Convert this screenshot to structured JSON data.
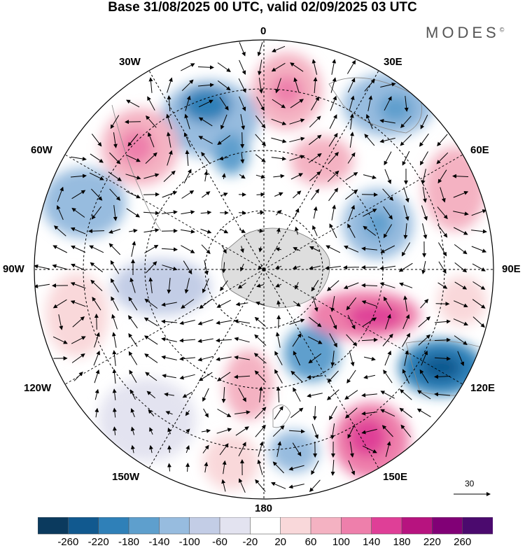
{
  "title": "Base 31/08/2025 00 UTC, valid 02/09/2025 03 UTC",
  "brand": {
    "name": "MODES",
    "mark": "©"
  },
  "longitude_labels": {
    "lon_0": "0",
    "lon_30e": "30E",
    "lon_60e": "60E",
    "lon_90e": "90E",
    "lon_120e": "120E",
    "lon_150e": "150E",
    "lon_180": "180",
    "lon_150w": "150W",
    "lon_120w": "120W",
    "lon_90w": "90W",
    "lon_60w": "60W",
    "lon_30w": "30W"
  },
  "wind_scale": {
    "label": "30"
  },
  "colorbar": {
    "ticks": [
      "-260",
      "-220",
      "-180",
      "-140",
      "-100",
      "-60",
      "-20",
      "20",
      "60",
      "100",
      "140",
      "180",
      "220",
      "260"
    ],
    "colors": [
      "#0b3a5e",
      "#11598f",
      "#2f80b8",
      "#5e9fcd",
      "#97bcdf",
      "#c3cde6",
      "#e3e3f0",
      "#ffffff",
      "#f9d8da",
      "#f4b2c2",
      "#ee7fab",
      "#df3f97",
      "#b7137f",
      "#810076",
      "#4b0a6e"
    ]
  },
  "colors": {
    "land": "#dedede",
    "ocean": "#ffffff",
    "grid": "#000000"
  }
}
